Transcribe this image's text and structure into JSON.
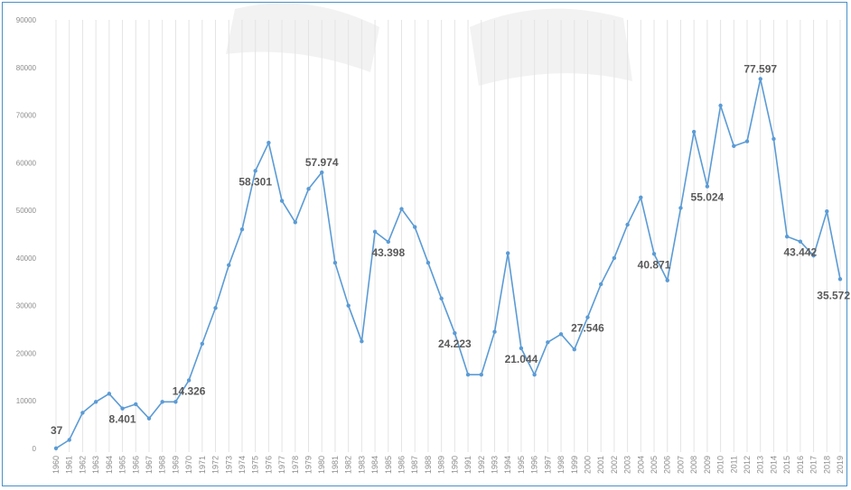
{
  "chart_data": {
    "type": "line",
    "title": "",
    "xlabel": "",
    "ylabel": "",
    "ylim": [
      0,
      90000
    ],
    "y_ticks": [
      "0",
      "10000",
      "20000",
      "30000",
      "40000",
      "50000",
      "60000",
      "70000",
      "80000",
      "90000"
    ],
    "grid": "vertical lines",
    "legend": "none",
    "colors": {
      "line": "#5b9bd5",
      "marker": "#5b9bd5",
      "grid": "#e4e4e4",
      "frame": "#4a90c8",
      "label": "#5a5a5a"
    },
    "categories": [
      "1960",
      "1961",
      "1962",
      "1963",
      "1964",
      "1965",
      "1966",
      "1967",
      "1968",
      "1969",
      "1970",
      "1971",
      "1972",
      "1973",
      "1974",
      "1975",
      "1976",
      "1977",
      "1978",
      "1979",
      "1980",
      "1981",
      "1982",
      "1983",
      "1984",
      "1985",
      "1986",
      "1987",
      "1988",
      "1989",
      "1990",
      "1991",
      "1992",
      "1993",
      "1994",
      "1995",
      "1996",
      "1997",
      "1998",
      "1999",
      "2000",
      "2001",
      "2002",
      "2003",
      "2004",
      "2005",
      "2006",
      "2007",
      "2008",
      "2009",
      "2010",
      "2011",
      "2012",
      "2013",
      "2014",
      "2015",
      "2016",
      "2017",
      "2018",
      "2019"
    ],
    "series": [
      {
        "values": [
          37,
          1800,
          7500,
          9800,
          11500,
          8401,
          9300,
          6300,
          9800,
          9800,
          14326,
          22000,
          29500,
          38500,
          46000,
          58301,
          64200,
          52000,
          47500,
          54500,
          57974,
          39000,
          30000,
          22500,
          45500,
          43398,
          50300,
          46500,
          39000,
          31500,
          24223,
          15500,
          15500,
          24500,
          41000,
          21044,
          15500,
          22300,
          24000,
          20800,
          27546,
          34500,
          40000,
          47000,
          52700,
          40871,
          35300,
          50500,
          66500,
          55024,
          72000,
          63500,
          64500,
          77597,
          65000,
          44500,
          43442,
          40500,
          49800,
          35572
        ]
      }
    ],
    "data_labels": [
      {
        "index": 0,
        "text": "37"
      },
      {
        "index": 5,
        "text": "8.401"
      },
      {
        "index": 10,
        "text": "14.326"
      },
      {
        "index": 15,
        "text": "58.301"
      },
      {
        "index": 20,
        "text": "57.974"
      },
      {
        "index": 25,
        "text": "43.398"
      },
      {
        "index": 30,
        "text": "24.223"
      },
      {
        "index": 35,
        "text": "21.044"
      },
      {
        "index": 40,
        "text": "27.546"
      },
      {
        "index": 45,
        "text": "40.871"
      },
      {
        "index": 49,
        "text": "55.024"
      },
      {
        "index": 53,
        "text": "77.597"
      },
      {
        "index": 56,
        "text": "43.442"
      },
      {
        "index": 59,
        "text": "35.572"
      }
    ]
  }
}
